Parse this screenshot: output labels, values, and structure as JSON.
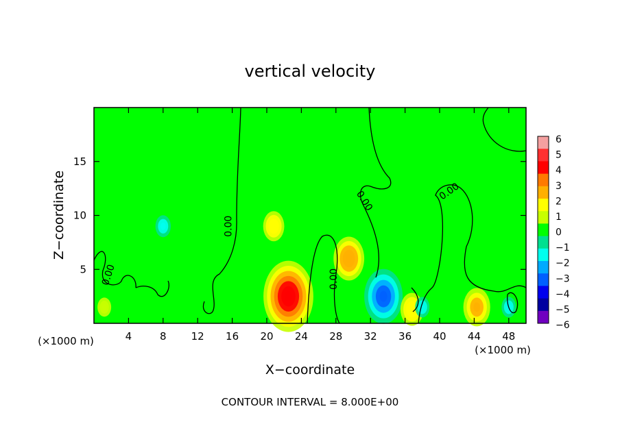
{
  "chart_data": {
    "type": "heatmap",
    "title": "vertical velocity",
    "xlabel": "X−coordinate",
    "ylabel": "Z−coordinate",
    "x_unit_left": "(×1000 m)",
    "x_unit_right": "(×1000 m)",
    "footer": "CONTOUR INTERVAL = 8.000E+00",
    "xlim": [
      0,
      50
    ],
    "ylim": [
      0,
      20
    ],
    "x_ticks": [
      4,
      8,
      12,
      16,
      20,
      24,
      28,
      32,
      36,
      40,
      44,
      48
    ],
    "y_ticks": [
      5,
      10,
      15
    ],
    "colorbar": {
      "ticks": [
        6,
        5,
        4,
        3,
        2,
        1,
        0,
        -1,
        -2,
        -3,
        -4,
        -5,
        -6
      ],
      "tick_labels": [
        "6",
        "5",
        "4",
        "3",
        "2",
        "1",
        "0",
        "−1",
        "−2",
        "−3",
        "−4",
        "−5",
        "−6"
      ],
      "colors": [
        "#f4a0a0",
        "#ff3030",
        "#ff0000",
        "#ff7a00",
        "#ffb000",
        "#ffff00",
        "#c8ff00",
        "#00ff00",
        "#00e090",
        "#00ffee",
        "#00aaff",
        "#0060ff",
        "#0000ee",
        "#0000a0",
        "#7000c0"
      ]
    },
    "contour_labels": [
      {
        "text": "0.00",
        "x": 15.9,
        "y": 9.0,
        "angle": -90
      },
      {
        "text": "0.00",
        "x": 2.0,
        "y": 4.4,
        "angle": -72
      },
      {
        "text": "0.00",
        "x": 28.1,
        "y": 4.1,
        "angle": -90
      },
      {
        "text": "0.00",
        "x": 31.0,
        "y": 11.2,
        "angle": 58
      },
      {
        "text": "0.00",
        "x": 41.3,
        "y": 12.0,
        "angle": -35
      }
    ],
    "features": [
      {
        "x": 1.2,
        "z": 1.5,
        "w": 1.3
      },
      {
        "x": 22.5,
        "z": 2.5,
        "w": 5.2
      },
      {
        "x": 20.8,
        "z": 9.0,
        "w": 2.2
      },
      {
        "x": 29.5,
        "z": 6.0,
        "w": 3.2
      },
      {
        "x": 33.5,
        "z": 2.5,
        "w": -4.0
      },
      {
        "x": 36.8,
        "z": 1.3,
        "w": 2.4
      },
      {
        "x": 44.3,
        "z": 1.5,
        "w": 2.8
      },
      {
        "x": 8.0,
        "z": 9.0,
        "w": -1.6
      },
      {
        "x": 38.0,
        "z": 1.5,
        "w": -1.5
      },
      {
        "x": 48.0,
        "z": 1.5,
        "w": -1.5
      }
    ]
  }
}
